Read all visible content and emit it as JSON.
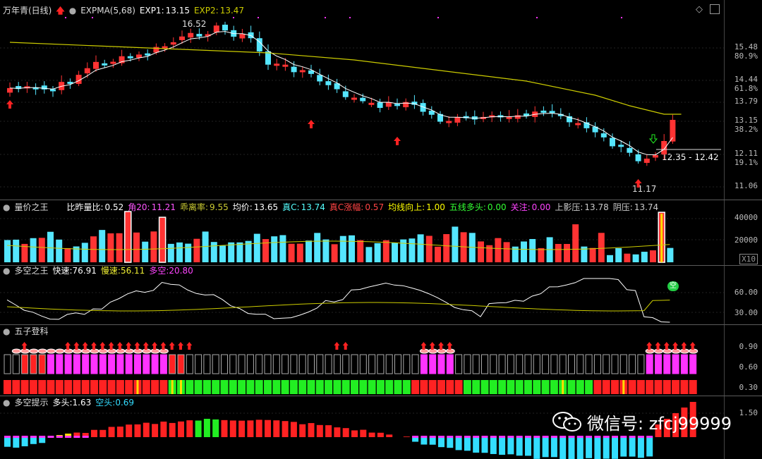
{
  "main": {
    "stock": "万年青(日线)",
    "indicator": "EXPMA(5,68)",
    "exp1_label": "EXP1:",
    "exp1": "13.15",
    "exp2_label": "EXP2:",
    "exp2": "13.47",
    "high_label": "16.52",
    "low_label": "11.17",
    "range_label": "12.35 - 12.42",
    "ticks": [
      {
        "v": "15.48",
        "c": "#bbb"
      },
      {
        "v": "80.9%",
        "c": "#bbb"
      },
      {
        "v": "14.44",
        "c": "#bbb"
      },
      {
        "v": "61.8%",
        "c": "#bbb"
      },
      {
        "v": "13.79",
        "c": "#bbb"
      },
      {
        "v": "13.15",
        "c": "#bbb"
      },
      {
        "v": "38.2%",
        "c": "#bbb"
      },
      {
        "v": "12.11",
        "c": "#bbb"
      },
      {
        "v": "19.1%",
        "c": "#bbb"
      },
      {
        "v": "11.06",
        "c": "#bbb"
      }
    ]
  },
  "vol": {
    "name": "量价之王",
    "fields": [
      {
        "k": "比昨量比:",
        "v": "0.52",
        "c": "#ffffff"
      },
      {
        "k": "角20:",
        "v": "11.21",
        "c": "#ff55ff"
      },
      {
        "k": "乖离率:",
        "v": "9.55",
        "c": "#cccc33"
      },
      {
        "k": "均价:",
        "v": "13.65",
        "c": "#ffffff"
      },
      {
        "k": "真C:",
        "v": "13.74",
        "c": "#55ffff"
      },
      {
        "k": "真C涨幅:",
        "v": "0.57",
        "c": "#ff4444"
      },
      {
        "k": "均线向上:",
        "v": "1.00",
        "c": "#ffff00"
      },
      {
        "k": "五线多头:",
        "v": "0.00",
        "c": "#33ff33"
      },
      {
        "k": "关注:",
        "v": "0.00",
        "c": "#ff44ff"
      },
      {
        "k": "上影压:",
        "v": "13.78",
        "c": "#cccccc"
      },
      {
        "k": "阴压:",
        "v": "13.74",
        "c": "#cccccc"
      }
    ],
    "ticks": [
      "40000",
      "20000"
    ],
    "unit": "X10"
  },
  "ls": {
    "name": "多空之王",
    "fast_label": "快速:",
    "fast": "76.91",
    "slow_label": "慢速:",
    "slow": "56.11",
    "diff_label": "多空:",
    "diff": "20.80",
    "ticks": [
      "60.00",
      "30.00"
    ],
    "badge": "空"
  },
  "wz": {
    "name": "五子登科",
    "ticks": [
      "0.90",
      "0.60",
      "0.30"
    ]
  },
  "tip": {
    "name": "多空提示",
    "bull_label": "多头:",
    "bull": "1.63",
    "bear_label": "空头:",
    "bear": "0.69",
    "ticks": [
      "1.50"
    ]
  },
  "watermark": "微信号: zfcj99999",
  "colors": {
    "up": "#ff3333",
    "down": "#55e6ff",
    "exp1": "#ffffff",
    "exp2": "#cccc00",
    "magenta": "#ff33ff",
    "green": "#22ee22"
  }
}
